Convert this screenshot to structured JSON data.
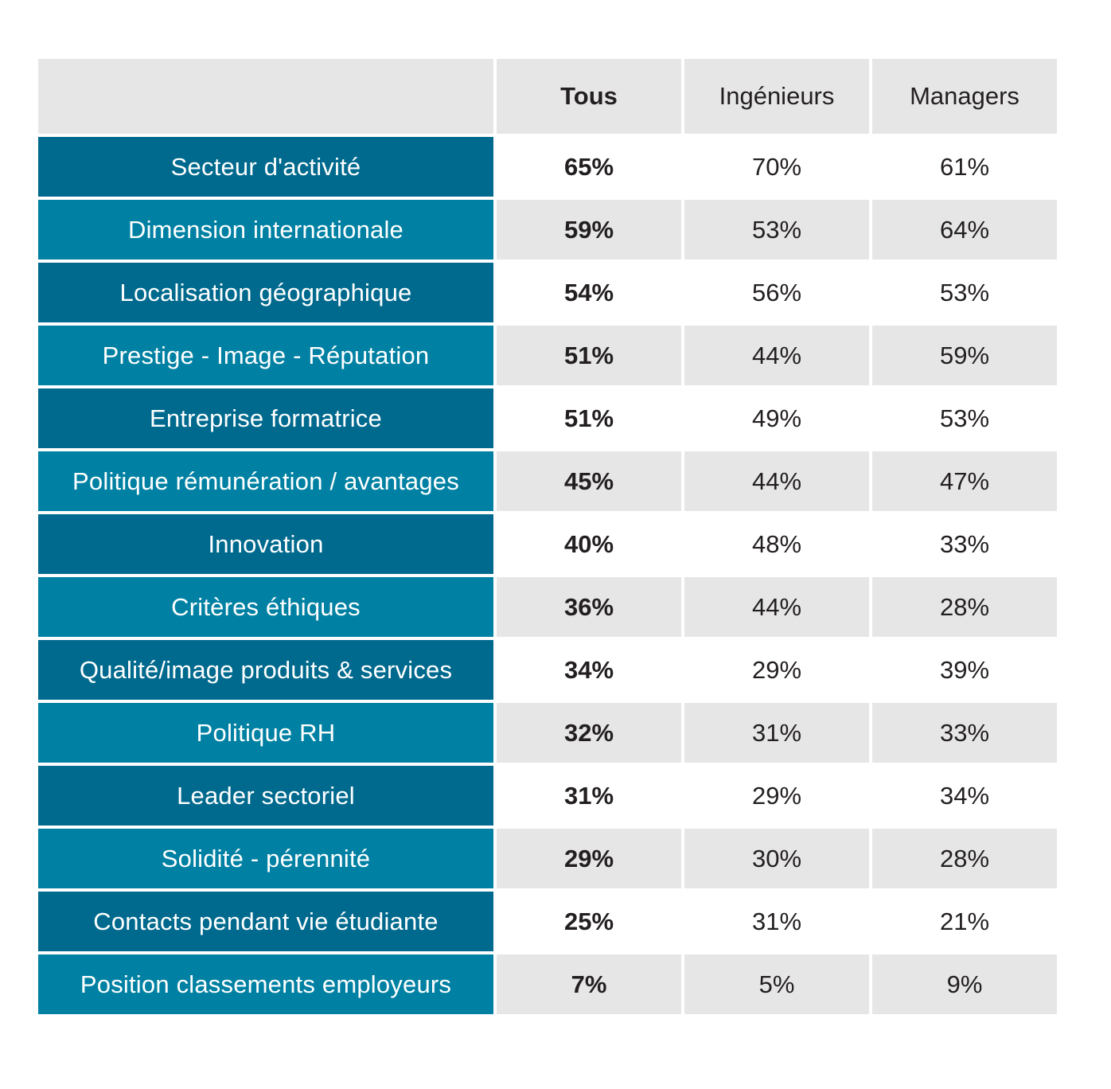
{
  "table": {
    "headers": {
      "blank": "",
      "tous": "Tous",
      "ingenieurs": "Ingénieurs",
      "managers": "Managers"
    },
    "rows": [
      {
        "label": "Secteur d'activité",
        "tous": "65%",
        "ingenieurs": "70%",
        "managers": "61%"
      },
      {
        "label": "Dimension internationale",
        "tous": "59%",
        "ingenieurs": "53%",
        "managers": "64%"
      },
      {
        "label": "Localisation géographique",
        "tous": "54%",
        "ingenieurs": "56%",
        "managers": "53%"
      },
      {
        "label": "Prestige - Image - Réputation",
        "tous": "51%",
        "ingenieurs": "44%",
        "managers": "59%"
      },
      {
        "label": "Entreprise formatrice",
        "tous": "51%",
        "ingenieurs": "49%",
        "managers": "53%"
      },
      {
        "label": "Politique rémunération / avantages",
        "tous": "45%",
        "ingenieurs": "44%",
        "managers": "47%"
      },
      {
        "label": "Innovation",
        "tous": "40%",
        "ingenieurs": "48%",
        "managers": "33%"
      },
      {
        "label": "Critères éthiques",
        "tous": "36%",
        "ingenieurs": "44%",
        "managers": "28%"
      },
      {
        "label": "Qualité/image produits & services",
        "tous": "34%",
        "ingenieurs": "29%",
        "managers": "39%"
      },
      {
        "label": "Politique RH",
        "tous": "32%",
        "ingenieurs": "31%",
        "managers": "33%"
      },
      {
        "label": "Leader sectoriel",
        "tous": "31%",
        "ingenieurs": "29%",
        "managers": "34%"
      },
      {
        "label": "Solidité - pérennité",
        "tous": "29%",
        "ingenieurs": "30%",
        "managers": "28%"
      },
      {
        "label": "Contacts pendant vie étudiante",
        "tous": "25%",
        "ingenieurs": "31%",
        "managers": "21%"
      },
      {
        "label": "Position classements employeurs",
        "tous": "7%",
        "ingenieurs": "5%",
        "managers": "9%"
      }
    ]
  },
  "colors": {
    "dark_label": "#006a8e",
    "light_label": "#0081a3",
    "light_value_bg": "#e6e6e6",
    "header_bg": "#e6e6e6"
  }
}
